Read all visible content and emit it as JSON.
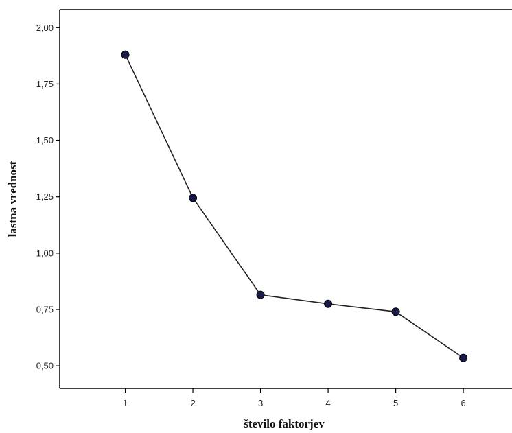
{
  "chart_data": {
    "type": "line",
    "title": "",
    "xlabel": "število faktorjev",
    "ylabel": "lastna vrednost",
    "x": [
      1,
      2,
      3,
      4,
      5,
      6
    ],
    "xtick_labels": [
      "1",
      "2",
      "3",
      "4",
      "5",
      "6"
    ],
    "y": [
      1.88,
      1.245,
      0.815,
      0.775,
      0.74,
      0.535
    ],
    "ytick_values": [
      0.5,
      0.75,
      1.0,
      1.25,
      1.5,
      1.75,
      2.0
    ],
    "ytick_labels": [
      "0,50",
      "0,75",
      "1,00",
      "1,25",
      "1,50",
      "1,75",
      "2,00"
    ],
    "xlim": [
      0.03,
      6.72
    ],
    "ylim": [
      0.4,
      2.08
    ],
    "grid": false,
    "legend": "none",
    "colors": {
      "line": "#222222",
      "marker_fill": "#1a1a4a",
      "marker_stroke": "#000000",
      "axis": "#000000"
    }
  }
}
